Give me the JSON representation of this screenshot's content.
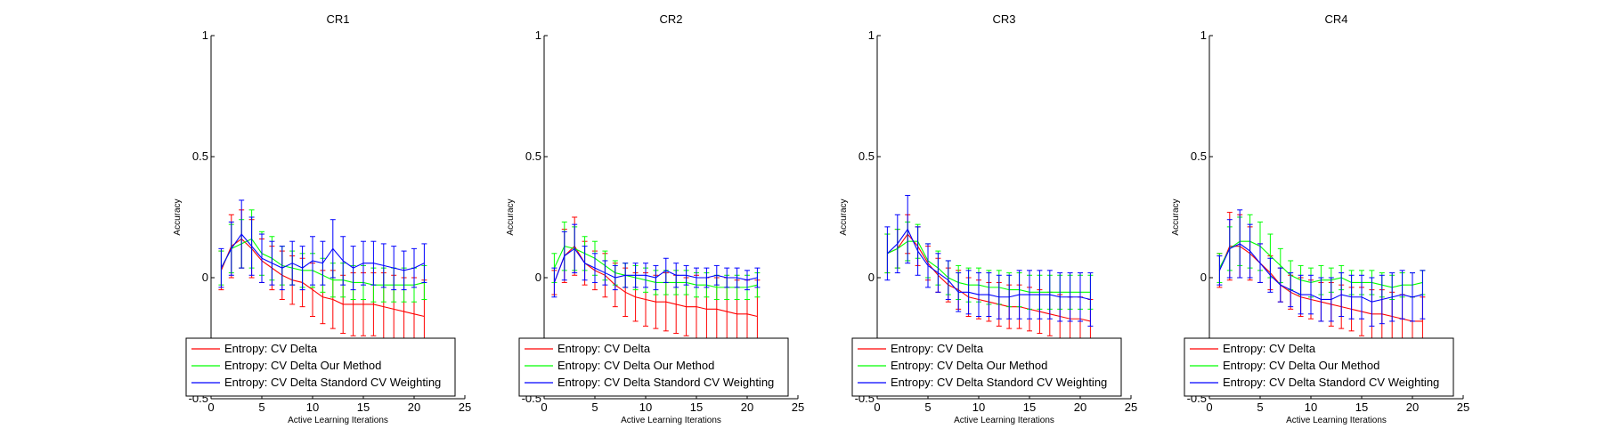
{
  "chart_data": [
    {
      "type": "line",
      "title": "CR1",
      "xlabel": "Active Learning Iterations",
      "ylabel": "Accuracy",
      "xlim": [
        0,
        25
      ],
      "ylim": [
        -0.5,
        1
      ],
      "xticks": [
        0,
        5,
        10,
        15,
        20,
        25
      ],
      "yticks": [
        -0.5,
        0,
        0.5,
        1
      ],
      "legend_position": "lower-center",
      "x": [
        1,
        2,
        3,
        4,
        5,
        6,
        7,
        8,
        9,
        10,
        11,
        12,
        13,
        14,
        15,
        16,
        17,
        18,
        19,
        20,
        21
      ],
      "series": [
        {
          "name": "Entropy: CV Delta",
          "color": "#ff0000",
          "values": [
            0.03,
            0.13,
            0.16,
            0.12,
            0.07,
            0.04,
            0.01,
            -0.01,
            -0.02,
            -0.05,
            -0.08,
            -0.09,
            -0.11,
            -0.11,
            -0.11,
            -0.11,
            -0.12,
            -0.13,
            -0.14,
            -0.15,
            -0.16
          ],
          "errors": [
            0.08,
            0.13,
            0.12,
            0.12,
            0.09,
            0.09,
            0.1,
            0.1,
            0.1,
            0.11,
            0.11,
            0.12,
            0.12,
            0.13,
            0.13,
            0.13,
            0.14,
            0.14,
            0.14,
            0.15,
            0.15
          ]
        },
        {
          "name": "Entropy: CV Delta Our Method",
          "color": "#00ff00",
          "values": [
            0.04,
            0.12,
            0.14,
            0.16,
            0.1,
            0.08,
            0.05,
            0.04,
            0.03,
            0.03,
            0.01,
            -0.01,
            -0.01,
            -0.02,
            -0.02,
            -0.03,
            -0.03,
            -0.03,
            -0.03,
            -0.03,
            -0.02
          ],
          "errors": [
            0.07,
            0.1,
            0.1,
            0.12,
            0.09,
            0.09,
            0.08,
            0.07,
            0.07,
            0.07,
            0.07,
            0.07,
            0.07,
            0.07,
            0.07,
            0.07,
            0.07,
            0.07,
            0.07,
            0.07,
            0.07
          ]
        },
        {
          "name": "Entropy: CV Delta Standord CV Weighting",
          "color": "#0000ff",
          "values": [
            0.04,
            0.12,
            0.18,
            0.13,
            0.08,
            0.06,
            0.04,
            0.06,
            0.04,
            0.07,
            0.06,
            0.12,
            0.07,
            0.04,
            0.06,
            0.06,
            0.05,
            0.04,
            0.03,
            0.04,
            0.06
          ],
          "errors": [
            0.08,
            0.11,
            0.14,
            0.12,
            0.1,
            0.09,
            0.09,
            0.09,
            0.09,
            0.1,
            0.09,
            0.12,
            0.1,
            0.09,
            0.09,
            0.09,
            0.09,
            0.09,
            0.08,
            0.08,
            0.08
          ]
        }
      ]
    },
    {
      "type": "line",
      "title": "CR2",
      "xlabel": "Active Learning Iterations",
      "ylabel": "Accuracy",
      "xlim": [
        0,
        25
      ],
      "ylim": [
        -0.5,
        1
      ],
      "xticks": [
        0,
        5,
        10,
        15,
        20,
        25
      ],
      "yticks": [
        -0.5,
        0,
        0.5,
        1
      ],
      "legend_position": "lower-center",
      "x": [
        1,
        2,
        3,
        4,
        5,
        6,
        7,
        8,
        9,
        10,
        11,
        12,
        13,
        14,
        15,
        16,
        17,
        18,
        19,
        20,
        21
      ],
      "series": [
        {
          "name": "Entropy: CV Delta",
          "color": "#ff0000",
          "values": [
            -0.02,
            0.09,
            0.13,
            0.06,
            0.03,
            0.01,
            -0.03,
            -0.06,
            -0.08,
            -0.09,
            -0.1,
            -0.1,
            -0.11,
            -0.12,
            -0.12,
            -0.13,
            -0.13,
            -0.14,
            -0.15,
            -0.15,
            -0.16
          ],
          "errors": [
            0.05,
            0.11,
            0.12,
            0.09,
            0.08,
            0.09,
            0.09,
            0.1,
            0.1,
            0.11,
            0.11,
            0.12,
            0.12,
            0.12,
            0.13,
            0.13,
            0.13,
            0.14,
            0.14,
            0.14,
            0.15
          ]
        },
        {
          "name": "Entropy: CV Delta Our Method",
          "color": "#00ff00",
          "values": [
            0.04,
            0.13,
            0.12,
            0.1,
            0.08,
            0.05,
            0.02,
            0.01,
            0.0,
            -0.01,
            -0.02,
            -0.02,
            -0.02,
            -0.02,
            -0.03,
            -0.03,
            -0.04,
            -0.04,
            -0.04,
            -0.04,
            -0.03
          ],
          "errors": [
            0.06,
            0.1,
            0.09,
            0.07,
            0.07,
            0.06,
            0.05,
            0.05,
            0.05,
            0.05,
            0.05,
            0.05,
            0.05,
            0.05,
            0.05,
            0.05,
            0.05,
            0.05,
            0.05,
            0.05,
            0.05
          ]
        },
        {
          "name": "Entropy: CV Delta Standord CV Weighting",
          "color": "#0000ff",
          "values": [
            -0.02,
            0.09,
            0.12,
            0.06,
            0.04,
            0.02,
            0.0,
            0.01,
            0.01,
            0.01,
            0.0,
            0.03,
            0.01,
            0.01,
            0.0,
            0.0,
            0.01,
            0.0,
            0.0,
            -0.01,
            0.0
          ],
          "errors": [
            0.06,
            0.1,
            0.1,
            0.07,
            0.06,
            0.05,
            0.05,
            0.05,
            0.05,
            0.05,
            0.05,
            0.05,
            0.05,
            0.04,
            0.04,
            0.04,
            0.04,
            0.04,
            0.04,
            0.04,
            0.04
          ]
        }
      ]
    },
    {
      "type": "line",
      "title": "CR3",
      "xlabel": "Active Learning Iterations",
      "ylabel": "Accuracy",
      "xlim": [
        0,
        25
      ],
      "ylim": [
        -0.5,
        1
      ],
      "xticks": [
        0,
        5,
        10,
        15,
        20,
        25
      ],
      "yticks": [
        -0.5,
        0,
        0.5,
        1
      ],
      "legend_position": "lower-center",
      "x": [
        1,
        2,
        3,
        4,
        5,
        6,
        7,
        8,
        9,
        10,
        11,
        12,
        13,
        14,
        15,
        16,
        17,
        18,
        19,
        20,
        21
      ],
      "series": [
        {
          "name": "Entropy: CV Delta",
          "color": "#ff0000",
          "values": [
            0.1,
            0.12,
            0.18,
            0.13,
            0.06,
            0.01,
            -0.03,
            -0.05,
            -0.08,
            -0.09,
            -0.1,
            -0.11,
            -0.12,
            -0.12,
            -0.13,
            -0.14,
            -0.15,
            -0.16,
            -0.17,
            -0.17,
            -0.18
          ],
          "errors": [
            0.08,
            0.08,
            0.08,
            0.08,
            0.07,
            0.07,
            0.07,
            0.08,
            0.08,
            0.08,
            0.08,
            0.09,
            0.09,
            0.09,
            0.09,
            0.09,
            0.09,
            0.09,
            0.09,
            0.09,
            0.09
          ]
        },
        {
          "name": "Entropy: CV Delta Our Method",
          "color": "#00ff00",
          "values": [
            0.1,
            0.12,
            0.15,
            0.15,
            0.07,
            0.04,
            0.0,
            -0.02,
            -0.03,
            -0.03,
            -0.04,
            -0.04,
            -0.05,
            -0.05,
            -0.06,
            -0.06,
            -0.06,
            -0.06,
            -0.06,
            -0.06,
            -0.06
          ],
          "errors": [
            0.08,
            0.08,
            0.08,
            0.07,
            0.07,
            0.07,
            0.07,
            0.07,
            0.07,
            0.07,
            0.07,
            0.07,
            0.07,
            0.07,
            0.07,
            0.07,
            0.07,
            0.07,
            0.07,
            0.07,
            0.07
          ]
        },
        {
          "name": "Entropy: CV Delta Standord CV Weighting",
          "color": "#0000ff",
          "values": [
            0.1,
            0.14,
            0.2,
            0.11,
            0.05,
            0.02,
            -0.01,
            -0.06,
            -0.06,
            -0.07,
            -0.07,
            -0.08,
            -0.08,
            -0.07,
            -0.07,
            -0.07,
            -0.07,
            -0.08,
            -0.08,
            -0.08,
            -0.09
          ],
          "errors": [
            0.11,
            0.12,
            0.14,
            0.1,
            0.09,
            0.08,
            0.08,
            0.08,
            0.09,
            0.09,
            0.09,
            0.09,
            0.09,
            0.1,
            0.1,
            0.1,
            0.1,
            0.1,
            0.1,
            0.1,
            0.11
          ]
        }
      ]
    },
    {
      "type": "line",
      "title": "CR4",
      "xlabel": "Active Learning Iterations",
      "ylabel": "Accuracy",
      "xlim": [
        0,
        25
      ],
      "ylim": [
        -0.5,
        1
      ],
      "xticks": [
        0,
        5,
        10,
        15,
        20,
        25
      ],
      "yticks": [
        -0.5,
        0,
        0.5,
        1
      ],
      "legend_position": "lower-center",
      "x": [
        1,
        2,
        3,
        4,
        5,
        6,
        7,
        8,
        9,
        10,
        11,
        12,
        13,
        14,
        15,
        16,
        17,
        18,
        19,
        20,
        21
      ],
      "series": [
        {
          "name": "Entropy: CV Delta",
          "color": "#ff0000",
          "values": [
            0.03,
            0.13,
            0.13,
            0.1,
            0.06,
            0.02,
            -0.03,
            -0.06,
            -0.08,
            -0.09,
            -0.1,
            -0.11,
            -0.12,
            -0.13,
            -0.14,
            -0.15,
            -0.15,
            -0.16,
            -0.17,
            -0.18,
            -0.18
          ],
          "errors": [
            0.07,
            0.14,
            0.13,
            0.11,
            0.08,
            0.07,
            0.07,
            0.07,
            0.08,
            0.08,
            0.08,
            0.09,
            0.09,
            0.09,
            0.1,
            0.1,
            0.1,
            0.1,
            0.1,
            0.1,
            0.1
          ]
        },
        {
          "name": "Entropy: CV Delta Our Method",
          "color": "#00ff00",
          "values": [
            0.04,
            0.12,
            0.15,
            0.15,
            0.13,
            0.09,
            0.05,
            0.01,
            -0.01,
            -0.02,
            -0.01,
            -0.01,
            0.0,
            -0.02,
            -0.02,
            -0.02,
            -0.03,
            -0.04,
            -0.03,
            -0.03,
            -0.02
          ],
          "errors": [
            0.06,
            0.09,
            0.1,
            0.11,
            0.1,
            0.09,
            0.07,
            0.06,
            0.06,
            0.06,
            0.06,
            0.05,
            0.05,
            0.05,
            0.05,
            0.05,
            0.05,
            0.05,
            0.05,
            0.05,
            0.05
          ]
        },
        {
          "name": "Entropy: CV Delta Standord CV Weighting",
          "color": "#0000ff",
          "values": [
            0.03,
            0.12,
            0.14,
            0.11,
            0.06,
            0.01,
            -0.03,
            -0.05,
            -0.07,
            -0.07,
            -0.09,
            -0.09,
            -0.07,
            -0.08,
            -0.08,
            -0.1,
            -0.09,
            -0.08,
            -0.07,
            -0.08,
            -0.07
          ],
          "errors": [
            0.06,
            0.12,
            0.14,
            0.11,
            0.08,
            0.07,
            0.07,
            0.07,
            0.08,
            0.08,
            0.09,
            0.09,
            0.09,
            0.09,
            0.09,
            0.1,
            0.1,
            0.1,
            0.1,
            0.1,
            0.1
          ]
        }
      ]
    }
  ]
}
